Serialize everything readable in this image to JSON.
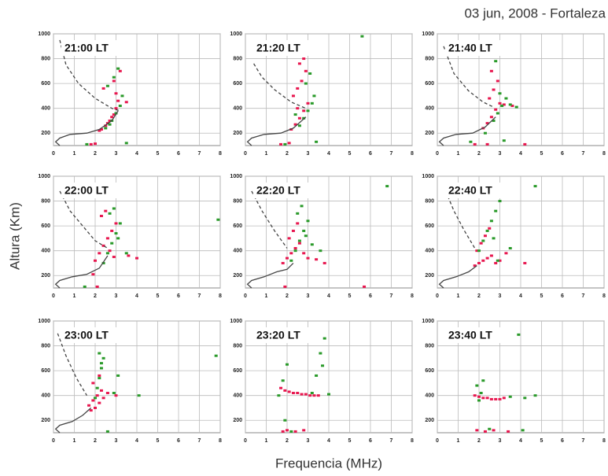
{
  "title": "03 jun, 2008 - Fortaleza",
  "ylabel": "Altura (Km)",
  "xlabel": "Frequencia (MHz)",
  "chart_data": [
    {
      "type": "scatter",
      "title": "21:00 LT",
      "xlim": [
        0,
        8
      ],
      "ylim": [
        100,
        1000
      ],
      "xticks": [
        0,
        1,
        2,
        3,
        4,
        5,
        6,
        7,
        8
      ],
      "yticks": [
        200,
        400,
        600,
        800,
        1000
      ],
      "grid": true,
      "series": [
        {
          "color": "#e8174f",
          "x": [
            2.3,
            2.5,
            2.7,
            2.9,
            3.0,
            3.1,
            2.2,
            2.6,
            2.8,
            3.0,
            2.4,
            1.8,
            2.0,
            2.9,
            3.2,
            3.5
          ],
          "values": [
            230,
            260,
            300,
            350,
            400,
            460,
            220,
            280,
            330,
            520,
            560,
            110,
            115,
            620,
            700,
            450
          ]
        },
        {
          "color": "#2a9a2a",
          "x": [
            2.5,
            2.8,
            3.0,
            3.2,
            3.3,
            2.6,
            2.9,
            3.1,
            1.6,
            3.5,
            2.7
          ],
          "values": [
            240,
            300,
            360,
            420,
            500,
            580,
            650,
            720,
            110,
            120,
            270
          ]
        },
        {
          "color": "#444444",
          "mode": "dashed",
          "x": [
            0.3,
            0.6,
            1.2,
            2.0,
            2.8,
            3.2
          ],
          "values": [
            950,
            750,
            600,
            480,
            400,
            380
          ]
        },
        {
          "color": "#444444",
          "mode": "solid",
          "x": [
            0.3,
            0.1,
            0.3,
            0.8,
            1.6,
            2.2,
            2.8,
            3.1
          ],
          "values": [
            100,
            130,
            160,
            190,
            200,
            230,
            300,
            380
          ]
        }
      ]
    },
    {
      "type": "scatter",
      "title": "21:20 LT",
      "xlim": [
        0,
        8
      ],
      "ylim": [
        100,
        1000
      ],
      "xticks": [
        0,
        1,
        2,
        3,
        4,
        5,
        6,
        7,
        8
      ],
      "yticks": [
        200,
        400,
        600,
        800,
        1000
      ],
      "grid": true,
      "series": [
        {
          "color": "#e8174f",
          "x": [
            2.2,
            2.4,
            2.6,
            2.8,
            3.0,
            2.3,
            2.5,
            2.7,
            2.9,
            2.6,
            2.8,
            1.7,
            2.1,
            2.5
          ],
          "values": [
            230,
            270,
            320,
            380,
            440,
            500,
            560,
            620,
            700,
            760,
            800,
            110,
            120,
            400
          ]
        },
        {
          "color": "#2a9a2a",
          "x": [
            2.6,
            2.8,
            3.0,
            3.2,
            3.3,
            2.9,
            3.1,
            1.9,
            3.4,
            5.6,
            2.4
          ],
          "values": [
            260,
            320,
            380,
            440,
            500,
            600,
            680,
            110,
            130,
            980,
            350
          ]
        },
        {
          "color": "#444444",
          "mode": "dashed",
          "x": [
            0.4,
            0.8,
            1.4,
            2.2,
            2.9
          ],
          "values": [
            760,
            650,
            550,
            450,
            400
          ]
        },
        {
          "color": "#444444",
          "mode": "solid",
          "x": [
            0.3,
            0.1,
            0.3,
            0.9,
            1.7,
            2.3,
            2.9
          ],
          "values": [
            100,
            130,
            160,
            190,
            200,
            240,
            330
          ]
        }
      ]
    },
    {
      "type": "scatter",
      "title": "21:40 LT",
      "xlim": [
        0,
        8
      ],
      "ylim": [
        100,
        1000
      ],
      "xticks": [
        0,
        1,
        2,
        3,
        4,
        5,
        6,
        7,
        8
      ],
      "yticks": [
        200,
        400,
        600,
        800,
        1000
      ],
      "grid": true,
      "series": [
        {
          "color": "#e8174f",
          "x": [
            2.2,
            2.4,
            2.6,
            2.8,
            3.0,
            2.5,
            2.7,
            2.9,
            2.6,
            1.8,
            2.4,
            3.2,
            3.6,
            4.2
          ],
          "values": [
            240,
            280,
            330,
            390,
            440,
            480,
            550,
            620,
            700,
            110,
            110,
            430,
            420,
            110
          ]
        },
        {
          "color": "#2a9a2a",
          "x": [
            2.7,
            2.9,
            3.1,
            3.3,
            3.5,
            3.0,
            2.8,
            3.8,
            1.6,
            3.2,
            2.3
          ],
          "values": [
            300,
            360,
            420,
            480,
            430,
            520,
            780,
            410,
            130,
            140,
            200
          ]
        },
        {
          "color": "#444444",
          "mode": "dashed",
          "x": [
            0.3,
            0.8,
            1.5,
            2.2,
            2.7
          ],
          "values": [
            900,
            680,
            540,
            450,
            410
          ]
        },
        {
          "color": "#444444",
          "mode": "solid",
          "x": [
            0.3,
            0.1,
            0.3,
            0.9,
            1.7,
            2.3,
            2.8
          ],
          "values": [
            100,
            130,
            160,
            190,
            200,
            250,
            330
          ]
        }
      ]
    },
    {
      "type": "scatter",
      "title": "22:00 LT",
      "xlim": [
        0,
        8
      ],
      "ylim": [
        100,
        1000
      ],
      "xticks": [
        0,
        1,
        2,
        3,
        4,
        5,
        6,
        7,
        8
      ],
      "yticks": [
        200,
        400,
        600,
        800,
        1000
      ],
      "grid": true,
      "series": [
        {
          "color": "#e8174f",
          "x": [
            2.0,
            2.2,
            2.4,
            2.6,
            2.8,
            3.0,
            2.3,
            2.5,
            2.7,
            2.9,
            3.6,
            4.0,
            1.9,
            2.1
          ],
          "values": [
            320,
            380,
            440,
            500,
            560,
            620,
            680,
            720,
            400,
            350,
            360,
            340,
            210,
            110
          ]
        },
        {
          "color": "#2a9a2a",
          "x": [
            2.4,
            2.6,
            2.8,
            3.0,
            3.2,
            2.7,
            2.9,
            3.1,
            3.5,
            1.5,
            7.9
          ],
          "values": [
            300,
            380,
            460,
            540,
            620,
            700,
            740,
            500,
            380,
            110,
            650
          ]
        },
        {
          "color": "#444444",
          "mode": "dashed",
          "x": [
            0.3,
            0.8,
            1.4,
            2.0,
            2.6
          ],
          "values": [
            880,
            720,
            600,
            480,
            420
          ]
        },
        {
          "color": "#444444",
          "mode": "solid",
          "x": [
            0.3,
            0.1,
            0.3,
            0.9,
            1.6,
            2.2,
            2.6
          ],
          "values": [
            100,
            130,
            160,
            190,
            210,
            260,
            360
          ]
        }
      ]
    },
    {
      "type": "scatter",
      "title": "22:20 LT",
      "xlim": [
        0,
        8
      ],
      "ylim": [
        100,
        1000
      ],
      "xticks": [
        0,
        1,
        2,
        3,
        4,
        5,
        6,
        7,
        8
      ],
      "yticks": [
        200,
        400,
        600,
        800,
        1000
      ],
      "grid": true,
      "series": [
        {
          "color": "#e8174f",
          "x": [
            1.8,
            2.0,
            2.2,
            2.4,
            2.6,
            2.8,
            3.0,
            2.1,
            2.3,
            2.5,
            3.4,
            3.8,
            1.9,
            5.7
          ],
          "values": [
            300,
            340,
            380,
            420,
            460,
            380,
            340,
            500,
            560,
            620,
            330,
            300,
            110,
            110
          ]
        },
        {
          "color": "#2a9a2a",
          "x": [
            2.2,
            2.4,
            2.6,
            2.8,
            3.0,
            2.5,
            2.7,
            2.9,
            3.2,
            3.6,
            6.8
          ],
          "values": [
            320,
            400,
            480,
            560,
            640,
            700,
            760,
            520,
            450,
            400,
            920
          ]
        },
        {
          "color": "#444444",
          "mode": "dashed",
          "x": [
            0.3,
            0.8,
            1.4,
            2.0
          ],
          "values": [
            880,
            720,
            560,
            420
          ]
        },
        {
          "color": "#444444",
          "mode": "solid",
          "x": [
            0.3,
            0.1,
            0.3,
            0.9,
            1.5,
            2.0,
            2.3
          ],
          "values": [
            100,
            130,
            160,
            190,
            230,
            250,
            300
          ]
        }
      ]
    },
    {
      "type": "scatter",
      "title": "22:40 LT",
      "xlim": [
        0,
        8
      ],
      "ylim": [
        100,
        1000
      ],
      "xticks": [
        0,
        1,
        2,
        3,
        4,
        5,
        6,
        7,
        8
      ],
      "yticks": [
        200,
        400,
        600,
        800,
        1000
      ],
      "grid": true,
      "series": [
        {
          "color": "#e8174f",
          "x": [
            1.8,
            2.0,
            2.2,
            2.4,
            2.6,
            1.9,
            2.1,
            2.3,
            2.8,
            3.0,
            2.5,
            3.3,
            4.2
          ],
          "values": [
            280,
            300,
            320,
            340,
            360,
            400,
            460,
            520,
            300,
            320,
            580,
            380,
            300
          ]
        },
        {
          "color": "#2a9a2a",
          "x": [
            2.0,
            2.2,
            2.4,
            2.6,
            2.8,
            3.0,
            2.3,
            2.5,
            2.7,
            3.5,
            4.7,
            2.9
          ],
          "values": [
            400,
            480,
            560,
            640,
            720,
            800,
            860,
            900,
            500,
            420,
            920,
            320
          ]
        },
        {
          "color": "#444444",
          "mode": "dashed",
          "x": [
            0.4,
            0.8,
            1.3,
            1.8
          ],
          "values": [
            880,
            720,
            560,
            420
          ]
        },
        {
          "color": "#444444",
          "mode": "solid",
          "x": [
            0.3,
            0.1,
            0.3,
            0.9,
            1.5,
            1.9
          ],
          "values": [
            100,
            130,
            160,
            190,
            230,
            280
          ]
        }
      ]
    },
    {
      "type": "scatter",
      "title": "23:00 LT",
      "xlim": [
        0,
        8
      ],
      "ylim": [
        100,
        1000
      ],
      "xticks": [
        0,
        1,
        2,
        3,
        4,
        5,
        6,
        7,
        8
      ],
      "yticks": [
        200,
        400,
        600,
        800,
        1000
      ],
      "grid": true,
      "series": [
        {
          "color": "#e8174f",
          "x": [
            1.7,
            1.9,
            2.1,
            2.3,
            2.0,
            2.2,
            1.8,
            2.4,
            2.6,
            3.0,
            1.9,
            2.2
          ],
          "values": [
            320,
            360,
            400,
            440,
            300,
            340,
            280,
            380,
            420,
            400,
            500,
            560
          ]
        },
        {
          "color": "#2a9a2a",
          "x": [
            2.0,
            2.1,
            2.2,
            2.3,
            2.4,
            2.2,
            2.3,
            2.9,
            3.1,
            4.1,
            7.8,
            2.6
          ],
          "values": [
            380,
            460,
            540,
            620,
            700,
            740,
            660,
            420,
            560,
            400,
            720,
            110
          ]
        },
        {
          "color": "#444444",
          "mode": "dashed",
          "x": [
            0.2,
            0.6,
            1.1,
            1.6
          ],
          "values": [
            900,
            720,
            540,
            400
          ]
        },
        {
          "color": "#444444",
          "mode": "solid",
          "x": [
            0.3,
            0.1,
            0.3,
            0.9,
            1.4,
            1.8
          ],
          "values": [
            100,
            130,
            160,
            190,
            240,
            300
          ]
        }
      ]
    },
    {
      "type": "scatter",
      "title": "23:20 LT",
      "xlim": [
        0,
        8
      ],
      "ylim": [
        100,
        1000
      ],
      "xticks": [
        0,
        1,
        2,
        3,
        4,
        5,
        6,
        7,
        8
      ],
      "yticks": [
        200,
        400,
        600,
        800,
        1000
      ],
      "grid": true,
      "series": [
        {
          "color": "#e8174f",
          "x": [
            1.7,
            1.9,
            2.1,
            2.3,
            2.5,
            2.7,
            2.9,
            3.1,
            3.3,
            3.5,
            1.8,
            2.0,
            2.4,
            2.8
          ],
          "values": [
            460,
            440,
            430,
            420,
            420,
            410,
            410,
            400,
            400,
            400,
            110,
            120,
            110,
            120
          ]
        },
        {
          "color": "#2a9a2a",
          "x": [
            1.6,
            1.8,
            2.0,
            3.4,
            3.6,
            3.8,
            3.2,
            2.2,
            1.9,
            4.0,
            3.7
          ],
          "values": [
            400,
            520,
            650,
            560,
            740,
            860,
            420,
            110,
            200,
            410,
            640
          ]
        },
        {
          "color": "#444444",
          "mode": "dashed",
          "x": [],
          "values": []
        },
        {
          "color": "#444444",
          "mode": "solid",
          "x": [],
          "values": []
        }
      ]
    },
    {
      "type": "scatter",
      "title": "23:40 LT",
      "xlim": [
        0,
        8
      ],
      "ylim": [
        100,
        1000
      ],
      "xticks": [
        0,
        1,
        2,
        3,
        4,
        5,
        6,
        7,
        8
      ],
      "yticks": [
        200,
        400,
        600,
        800,
        1000
      ],
      "grid": true,
      "series": [
        {
          "color": "#e8174f",
          "x": [
            1.8,
            2.0,
            2.2,
            2.4,
            2.6,
            2.8,
            3.0,
            3.2,
            1.9,
            2.3,
            2.7,
            3.4
          ],
          "values": [
            400,
            390,
            380,
            380,
            370,
            370,
            370,
            380,
            120,
            110,
            120,
            110
          ]
        },
        {
          "color": "#2a9a2a",
          "x": [
            1.9,
            2.1,
            2.0,
            3.5,
            4.2,
            4.7,
            3.9,
            2.5,
            4.1,
            2.2
          ],
          "values": [
            480,
            420,
            360,
            390,
            380,
            400,
            890,
            130,
            120,
            520
          ]
        },
        {
          "color": "#444444",
          "mode": "dashed",
          "x": [],
          "values": []
        },
        {
          "color": "#444444",
          "mode": "solid",
          "x": [],
          "values": []
        }
      ]
    }
  ]
}
